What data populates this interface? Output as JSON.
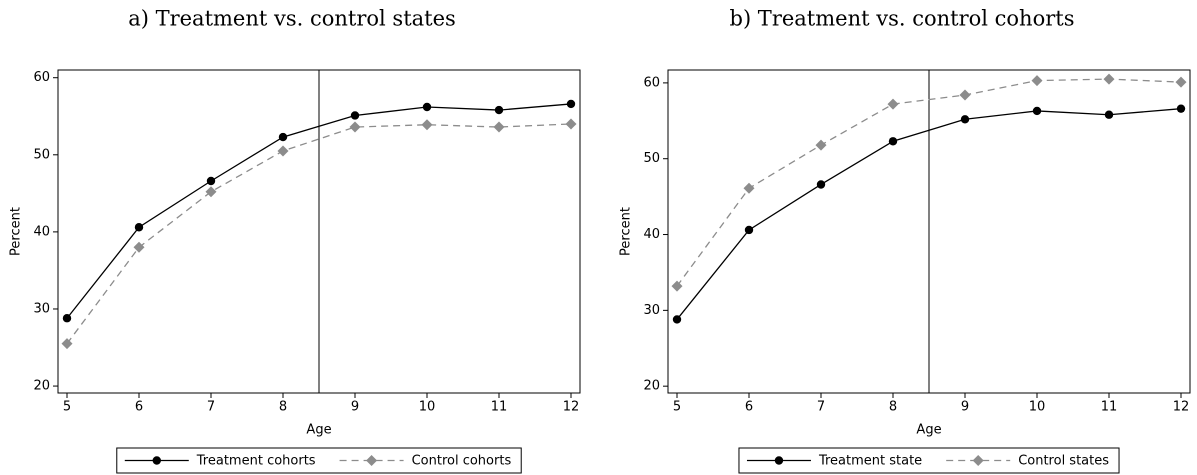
{
  "chart_data": [
    {
      "type": "line",
      "title": "a) Treatment vs. control states",
      "x_label": "Age",
      "y_label": "Percent",
      "x": [
        5,
        6,
        7,
        8,
        9,
        10,
        11,
        12
      ],
      "series": [
        {
          "name": "Treatment cohorts",
          "color": "#000000",
          "marker": "circle",
          "dash": false,
          "values": [
            28.8,
            40.6,
            46.6,
            52.3,
            55.1,
            56.2,
            55.8,
            56.6
          ]
        },
        {
          "name": "Control cohorts",
          "color": "#8c8c8c",
          "marker": "diamond",
          "dash": true,
          "values": [
            25.5,
            38.0,
            45.2,
            50.5,
            53.6,
            53.9,
            53.6,
            54.0
          ]
        }
      ],
      "vline": 8.5,
      "xlim": [
        4.875,
        12.125
      ],
      "xticks": [
        5,
        6,
        7,
        8,
        9,
        10,
        11,
        12
      ],
      "ylim": [
        19.1,
        61
      ],
      "yticks": [
        20,
        30,
        40,
        50,
        60
      ],
      "legend": "bottom"
    },
    {
      "type": "line",
      "title": "b) Treatment vs. control cohorts",
      "x_label": "Age",
      "y_label": "Percent",
      "x": [
        5,
        6,
        7,
        8,
        9,
        10,
        11,
        12
      ],
      "series": [
        {
          "name": "Treatment state",
          "color": "#000000",
          "marker": "circle",
          "dash": false,
          "values": [
            28.8,
            40.6,
            46.6,
            52.3,
            55.2,
            56.3,
            55.8,
            56.6
          ]
        },
        {
          "name": "Control states",
          "color": "#8c8c8c",
          "marker": "diamond",
          "dash": true,
          "values": [
            33.2,
            46.1,
            51.8,
            57.2,
            58.4,
            60.3,
            60.5,
            60.1
          ]
        }
      ],
      "vline": 8.5,
      "xlim": [
        4.875,
        12.125
      ],
      "xticks": [
        5,
        6,
        7,
        8,
        9,
        10,
        11,
        12
      ],
      "ylim": [
        19.1,
        61.7
      ],
      "yticks": [
        20,
        30,
        40,
        50,
        60
      ],
      "legend": "bottom"
    }
  ]
}
